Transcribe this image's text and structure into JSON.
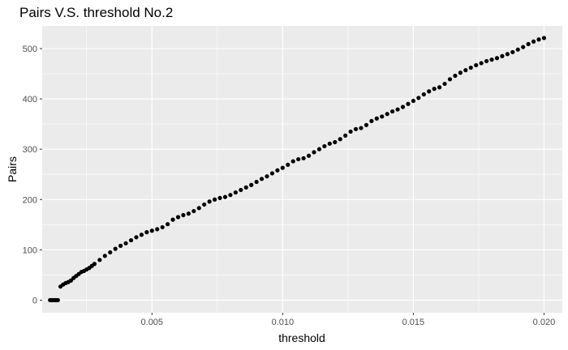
{
  "chart_data": {
    "type": "scatter",
    "title": "Pairs V.S. threshold No.2",
    "xlabel": "threshold",
    "ylabel": "Pairs",
    "xlim": [
      0.0008,
      0.0207
    ],
    "ylim": [
      -25,
      545
    ],
    "x_ticks": [
      0.005,
      0.01,
      0.015,
      0.02
    ],
    "x_tick_labels": [
      "0.005",
      "0.010",
      "0.015",
      "0.020"
    ],
    "y_ticks": [
      0,
      100,
      200,
      300,
      400,
      500
    ],
    "y_tick_labels": [
      "0",
      "100",
      "200",
      "300",
      "400",
      "500"
    ],
    "grid": true,
    "panel_background": "#ebebeb",
    "grid_color": "#ffffff",
    "point_color": "#000000",
    "series": [
      {
        "points": [
          [
            0.0011,
            0
          ],
          [
            0.00115,
            0
          ],
          [
            0.0012,
            0
          ],
          [
            0.00125,
            0
          ],
          [
            0.0013,
            0
          ],
          [
            0.00135,
            0
          ],
          [
            0.0014,
            0
          ],
          [
            0.0015,
            27
          ],
          [
            0.0016,
            31
          ],
          [
            0.0017,
            34
          ],
          [
            0.0018,
            36
          ],
          [
            0.0019,
            39
          ],
          [
            0.002,
            44
          ],
          [
            0.0021,
            48
          ],
          [
            0.0022,
            52
          ],
          [
            0.0023,
            56
          ],
          [
            0.0024,
            58
          ],
          [
            0.0025,
            61
          ],
          [
            0.0026,
            64
          ],
          [
            0.0027,
            68
          ],
          [
            0.0028,
            72
          ],
          [
            0.003,
            80
          ],
          [
            0.0032,
            88
          ],
          [
            0.0034,
            95
          ],
          [
            0.0036,
            102
          ],
          [
            0.0038,
            108
          ],
          [
            0.004,
            113
          ],
          [
            0.0042,
            119
          ],
          [
            0.0044,
            125
          ],
          [
            0.0046,
            130
          ],
          [
            0.0048,
            135
          ],
          [
            0.005,
            138
          ],
          [
            0.0052,
            141
          ],
          [
            0.0054,
            145
          ],
          [
            0.0056,
            151
          ],
          [
            0.0058,
            160
          ],
          [
            0.006,
            165
          ],
          [
            0.0062,
            169
          ],
          [
            0.0064,
            172
          ],
          [
            0.0066,
            177
          ],
          [
            0.0068,
            183
          ],
          [
            0.007,
            190
          ],
          [
            0.0072,
            196
          ],
          [
            0.0074,
            200
          ],
          [
            0.0076,
            203
          ],
          [
            0.0078,
            205
          ],
          [
            0.008,
            209
          ],
          [
            0.0082,
            214
          ],
          [
            0.0084,
            219
          ],
          [
            0.0086,
            224
          ],
          [
            0.0088,
            229
          ],
          [
            0.009,
            235
          ],
          [
            0.0092,
            241
          ],
          [
            0.0094,
            246
          ],
          [
            0.0096,
            252
          ],
          [
            0.0098,
            258
          ],
          [
            0.01,
            263
          ],
          [
            0.0102,
            269
          ],
          [
            0.0104,
            276
          ],
          [
            0.0106,
            280
          ],
          [
            0.0108,
            282
          ],
          [
            0.011,
            287
          ],
          [
            0.0112,
            294
          ],
          [
            0.0114,
            300
          ],
          [
            0.0116,
            306
          ],
          [
            0.0118,
            311
          ],
          [
            0.012,
            314
          ],
          [
            0.0122,
            320
          ],
          [
            0.0124,
            327
          ],
          [
            0.0126,
            335
          ],
          [
            0.0128,
            340
          ],
          [
            0.013,
            342
          ],
          [
            0.0132,
            348
          ],
          [
            0.0134,
            356
          ],
          [
            0.0136,
            361
          ],
          [
            0.0138,
            365
          ],
          [
            0.014,
            370
          ],
          [
            0.0142,
            375
          ],
          [
            0.0144,
            379
          ],
          [
            0.0146,
            384
          ],
          [
            0.0148,
            390
          ],
          [
            0.015,
            396
          ],
          [
            0.0152,
            402
          ],
          [
            0.0154,
            409
          ],
          [
            0.0156,
            415
          ],
          [
            0.0158,
            420
          ],
          [
            0.016,
            423
          ],
          [
            0.0162,
            430
          ],
          [
            0.0164,
            439
          ],
          [
            0.0166,
            446
          ],
          [
            0.0168,
            452
          ],
          [
            0.017,
            457
          ],
          [
            0.0172,
            462
          ],
          [
            0.0174,
            467
          ],
          [
            0.0176,
            471
          ],
          [
            0.0178,
            475
          ],
          [
            0.018,
            478
          ],
          [
            0.0182,
            481
          ],
          [
            0.0184,
            485
          ],
          [
            0.0186,
            489
          ],
          [
            0.0188,
            493
          ],
          [
            0.019,
            498
          ],
          [
            0.0192,
            503
          ],
          [
            0.0194,
            509
          ],
          [
            0.0196,
            514
          ],
          [
            0.0198,
            518
          ],
          [
            0.02,
            521
          ]
        ]
      }
    ]
  }
}
